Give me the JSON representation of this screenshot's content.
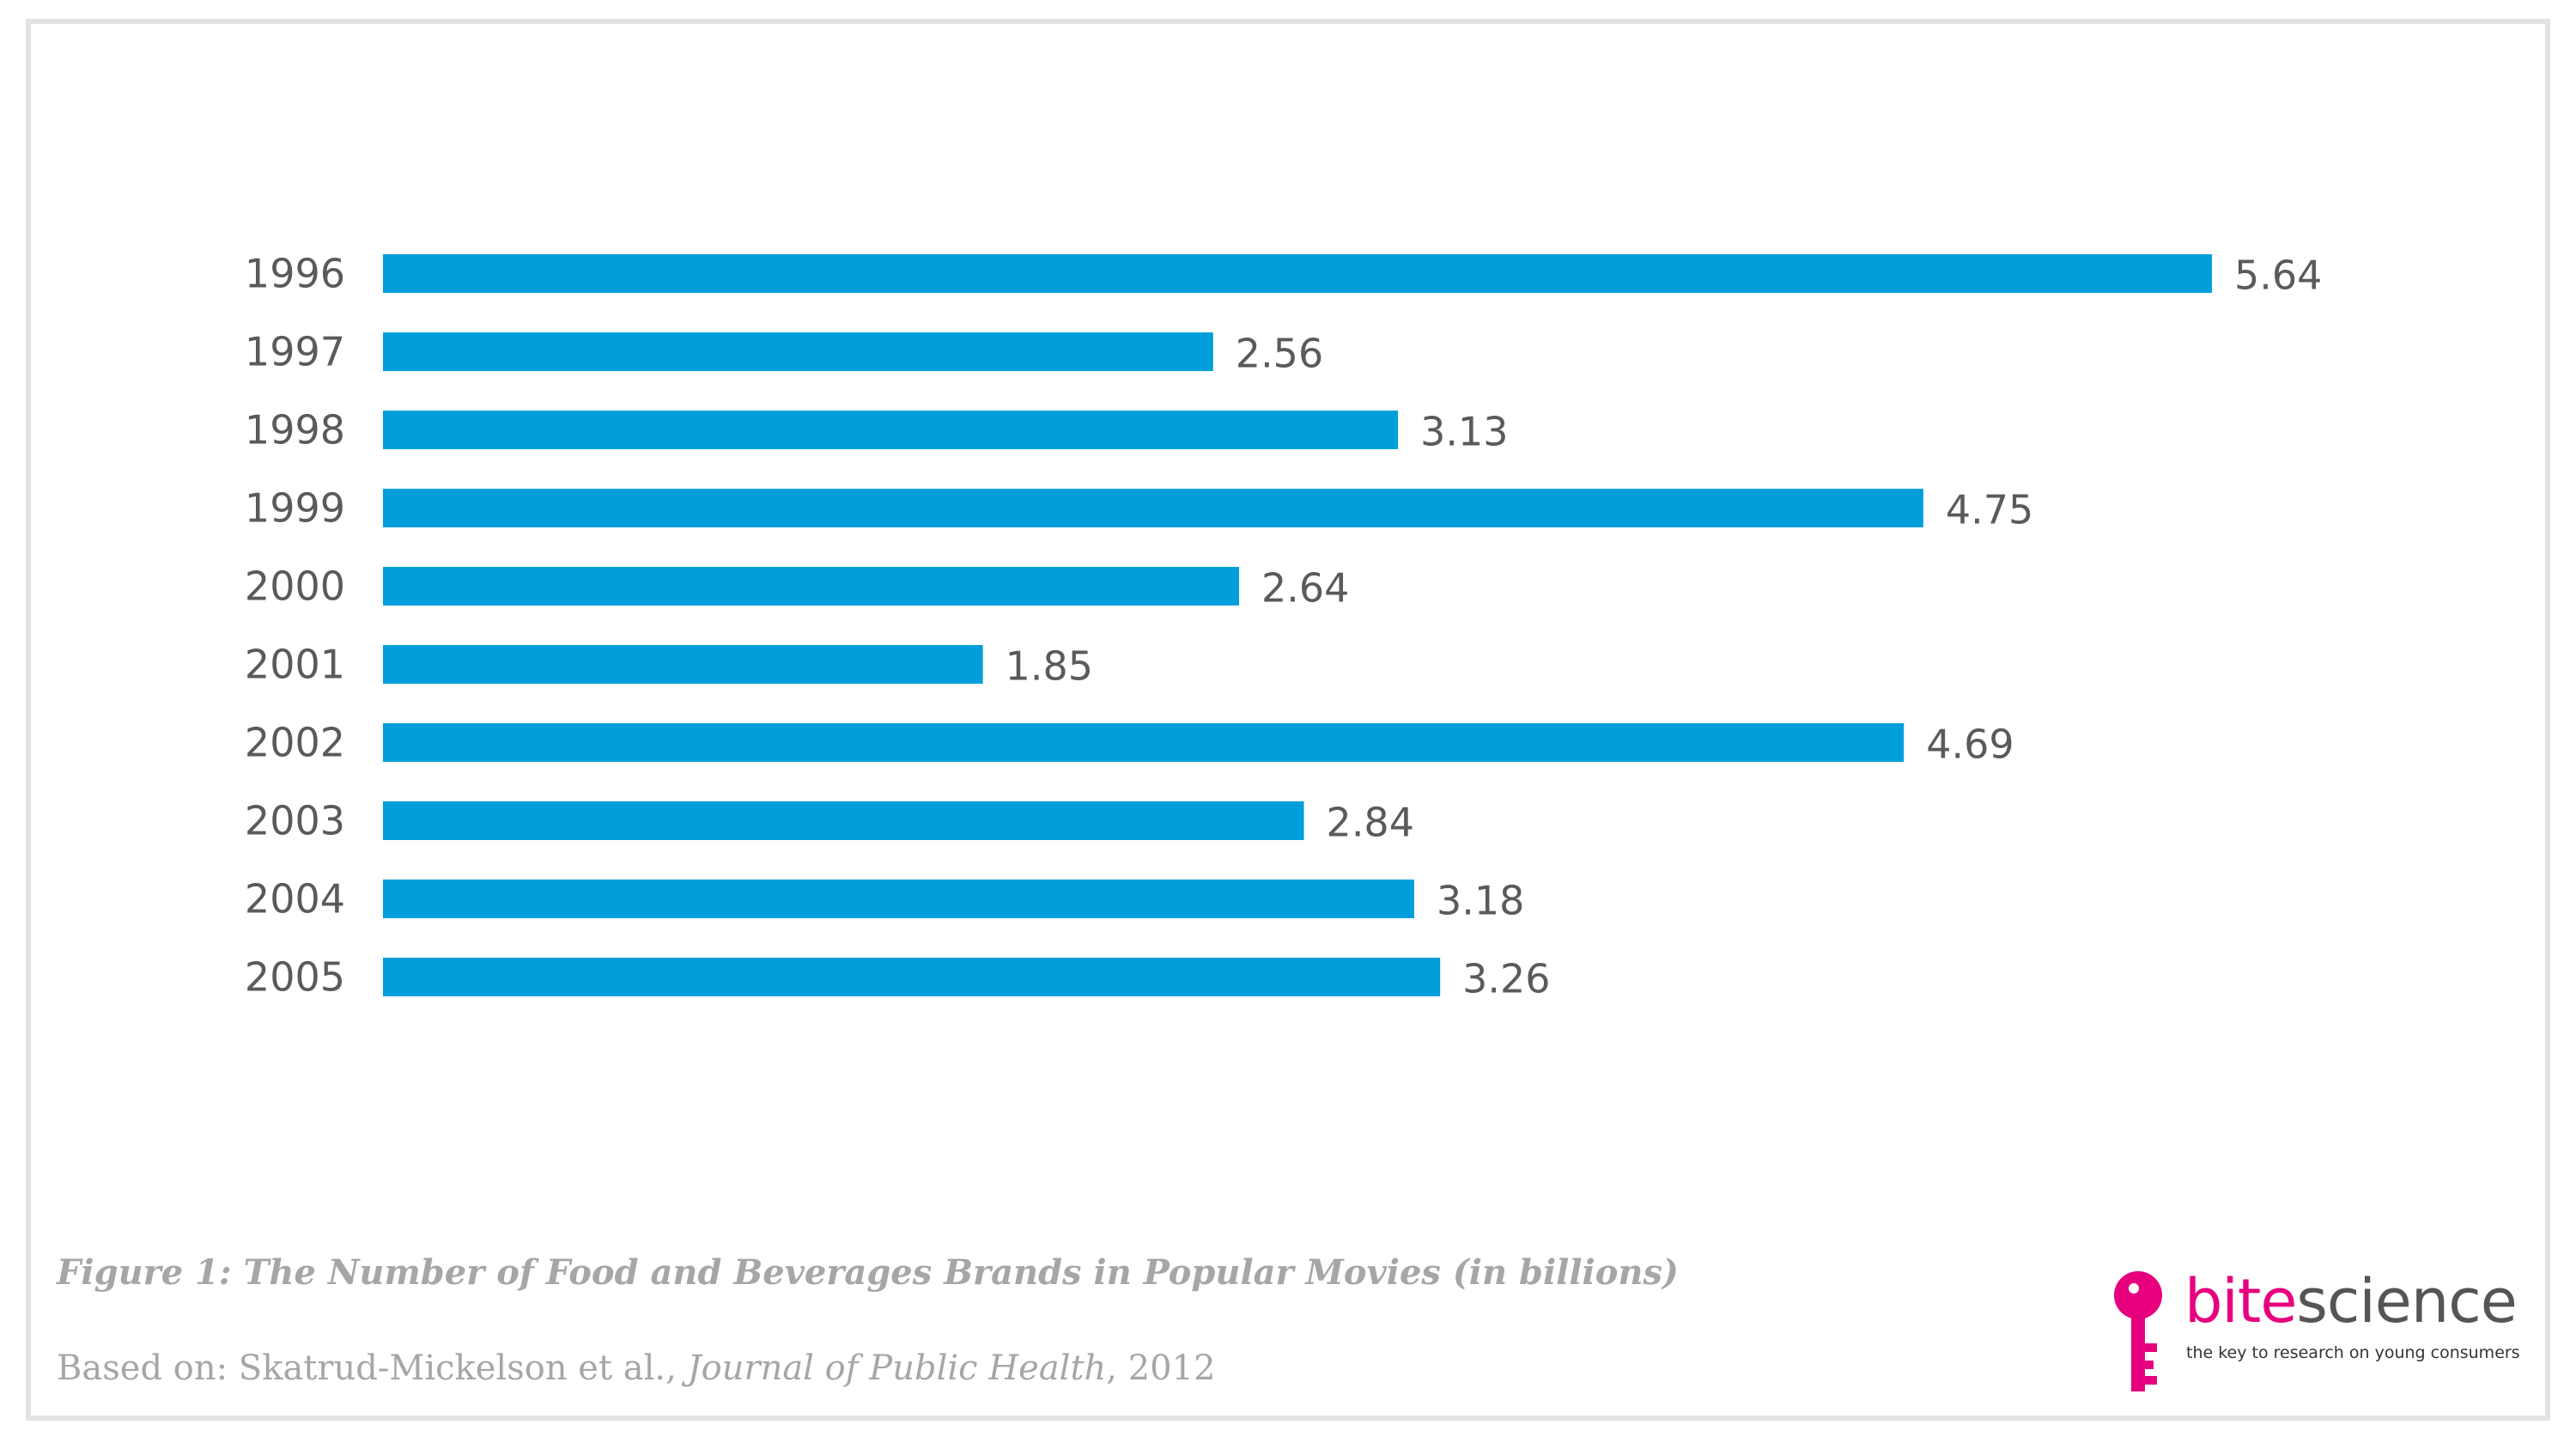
{
  "chart_data": {
    "type": "bar",
    "orientation": "horizontal",
    "categories": [
      "1996",
      "1997",
      "1998",
      "1999",
      "2000",
      "2001",
      "2002",
      "2003",
      "2004",
      "2005"
    ],
    "values": [
      5.64,
      2.56,
      3.13,
      4.75,
      2.64,
      1.85,
      4.69,
      2.84,
      3.18,
      3.26
    ],
    "value_labels": [
      "5.64",
      "2.56",
      "3.13",
      "4.75",
      "2.64",
      "1.85",
      "4.69",
      "2.84",
      "3.18",
      "3.26"
    ],
    "xlim": [
      0,
      5.64
    ],
    "grid": false,
    "axes_visible": false,
    "colors": {
      "bar": "#009fdb",
      "label": "#5a5a5a"
    }
  },
  "caption": "Figure 1: The Number of Food and Beverages Brands in Popular Movies (in billions)",
  "source": {
    "prefix": "Based on:  Skatrud-Mickelson et al.,  ",
    "journal": "Journal of Public Health",
    "suffix": ", 2012"
  },
  "logo": {
    "icon": "key-icon",
    "name_part1": "bite",
    "name_part2": "science",
    "tagline": "the key to research on young consumers",
    "colors": {
      "accent": "#e6007e",
      "text": "#555555"
    }
  }
}
